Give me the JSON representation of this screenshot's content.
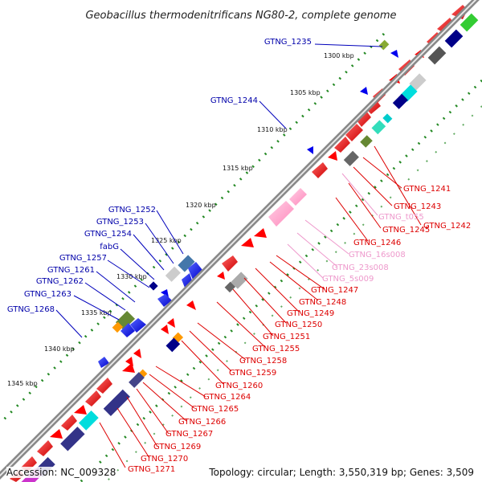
{
  "title": "Geobacillus thermodenitrificans NG80-2, complete genome",
  "footer": {
    "accession": "Accession: NC_009328",
    "topology": "Topology: circular; Length: 3,550,319 bp; Genes: 3,509"
  },
  "colors": {
    "cds": "#ff0000",
    "rna": "#ff99cc",
    "left_label": "#0000aa",
    "right_label": "#dd0000",
    "rna_label": "#ee99cc",
    "backbone": "#777777",
    "tick": "#228822"
  },
  "scale_labels": [
    "1300 kbp",
    "1305 kbp",
    "1310 kbp",
    "1315 kbp",
    "1320 kbp",
    "1325 kbp",
    "1330 kbp",
    "1335 kbp",
    "1340 kbp",
    "1345 kbp"
  ],
  "left_labels": [
    "GTNG_1235",
    "GTNG_1244",
    "GTNG_1252",
    "GTNG_1253",
    "GTNG_1254",
    "fabG",
    "GTNG_1257",
    "GTNG_1261",
    "GTNG_1262",
    "GTNG_1263",
    "GTNG_1268"
  ],
  "right_labels": [
    "GTNG_1241",
    "GTNG_1243",
    "GTNG_1242",
    "GTNG_t055",
    "GTNG_1245",
    "GTNG_1246",
    "GTNG_16s008",
    "GTNG_23s008",
    "GTNG_5s009",
    "GTNG_1247",
    "GTNG_1248",
    "GTNG_1249",
    "GTNG_1250",
    "GTNG_1251",
    "GTNG_1255",
    "GTNG_1258",
    "GTNG_1259",
    "GTNG_1260",
    "GTNG_1264",
    "GTNG_1265",
    "GTNG_1266",
    "GTNG_1267",
    "GTNG_1269",
    "GTNG_1270",
    "GTNG_1271"
  ],
  "right_label_kinds": [
    "cds",
    "cds",
    "cds",
    "rna",
    "cds",
    "cds",
    "rna",
    "rna",
    "rna",
    "cds",
    "cds",
    "cds",
    "cds",
    "cds",
    "cds",
    "cds",
    "cds",
    "cds",
    "cds",
    "cds",
    "cds",
    "cds",
    "cds",
    "cds",
    "cds"
  ]
}
